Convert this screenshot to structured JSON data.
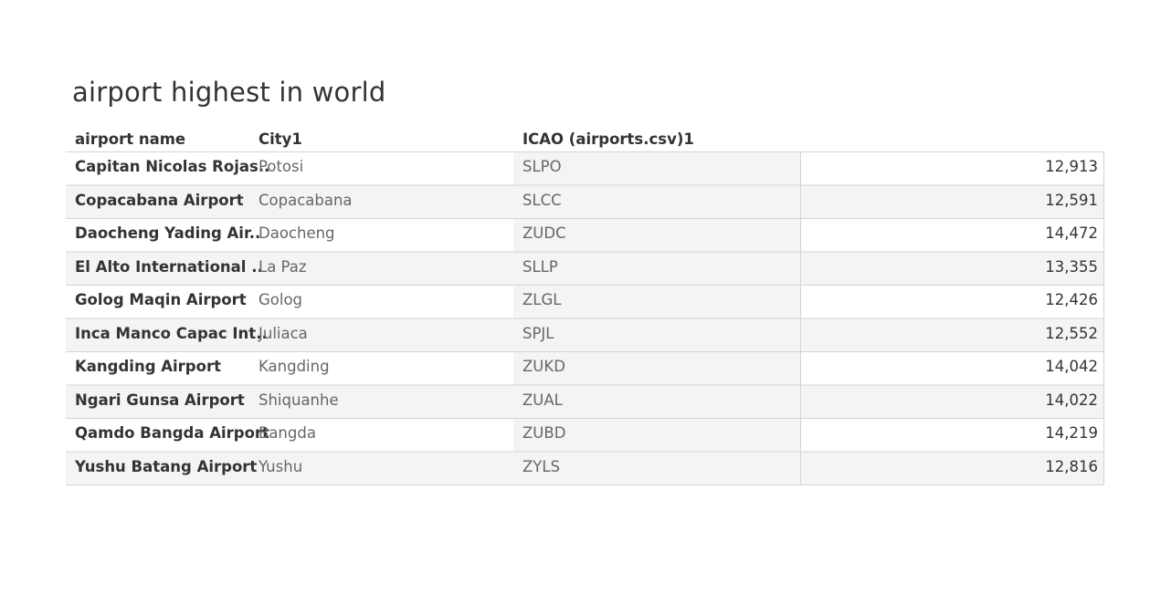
{
  "title": "airport highest in world",
  "chart_data": {
    "type": "table",
    "columns": [
      "airport name",
      "City1",
      "ICAO (airports.csv)1",
      ""
    ],
    "rows": [
      {
        "airport_name": "Capitan Nicolas Rojas..",
        "city": "Potosi",
        "icao": "SLPO",
        "value": 12913,
        "value_text": "12,913"
      },
      {
        "airport_name": "Copacabana Airport",
        "city": "Copacabana",
        "icao": "SLCC",
        "value": 12591,
        "value_text": "12,591"
      },
      {
        "airport_name": "Daocheng Yading Air..",
        "city": "Daocheng",
        "icao": "ZUDC",
        "value": 14472,
        "value_text": "14,472"
      },
      {
        "airport_name": "El Alto International ..",
        "city": "La Paz",
        "icao": "SLLP",
        "value": 13355,
        "value_text": "13,355"
      },
      {
        "airport_name": "Golog Maqin Airport",
        "city": "Golog",
        "icao": "ZLGL",
        "value": 12426,
        "value_text": "12,426"
      },
      {
        "airport_name": "Inca Manco Capac Int..",
        "city": "Juliaca",
        "icao": "SPJL",
        "value": 12552,
        "value_text": "12,552"
      },
      {
        "airport_name": "Kangding Airport",
        "city": "Kangding",
        "icao": "ZUKD",
        "value": 14042,
        "value_text": "14,042"
      },
      {
        "airport_name": "Ngari Gunsa Airport",
        "city": "Shiquanhe",
        "icao": "ZUAL",
        "value": 14022,
        "value_text": "14,022"
      },
      {
        "airport_name": "Qamdo Bangda Airport",
        "city": "Bangda",
        "icao": "ZUBD",
        "value": 14219,
        "value_text": "14,219"
      },
      {
        "airport_name": "Yushu Batang Airport",
        "city": "Yushu",
        "icao": "ZYLS",
        "value": 12816,
        "value_text": "12,816"
      }
    ]
  },
  "colors": {
    "text": "#333333",
    "muted_text": "#666666",
    "band": "#f4f4f4",
    "grid": "#d4d4d4"
  }
}
